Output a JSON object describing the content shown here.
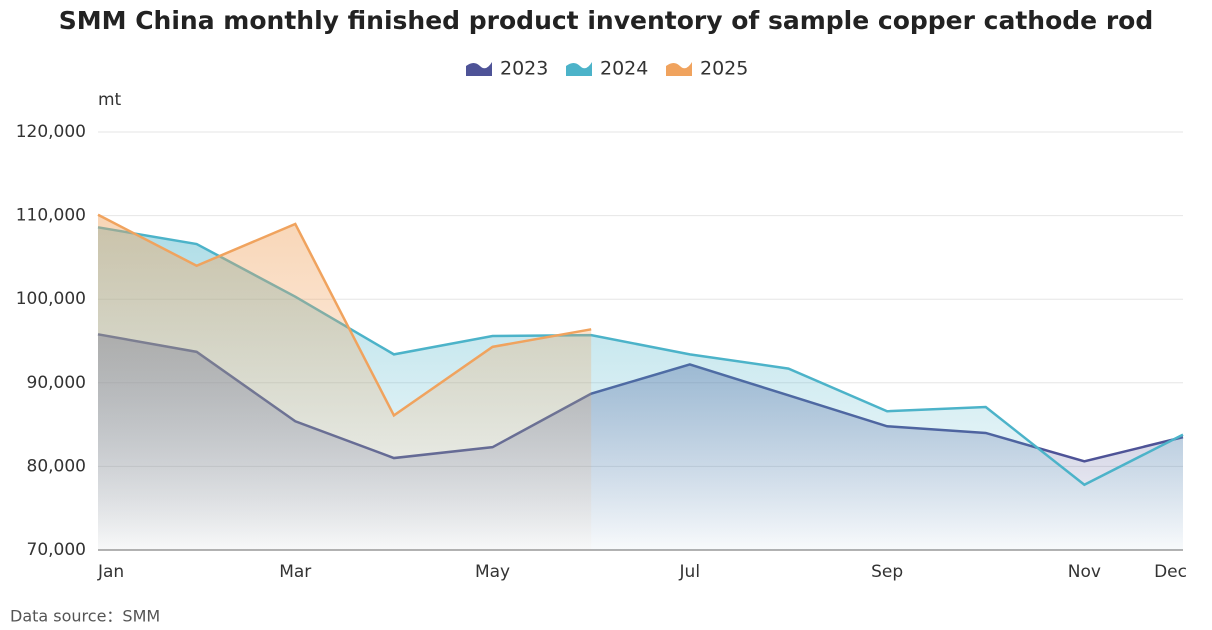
{
  "chart_data": {
    "type": "line",
    "title": "SMM China monthly finished product inventory of sample copper cathode rod",
    "y_unit": "mt",
    "source": "Data source：SMM",
    "categories": [
      "Jan",
      null,
      "Mar",
      null,
      "May",
      null,
      "Jul",
      null,
      "Sep",
      null,
      "Nov",
      "Dec"
    ],
    "series": [
      {
        "name": "2023",
        "color": "#4e5397",
        "values": [
          95800,
          93700,
          85400,
          81000,
          82300,
          88700,
          92200,
          88500,
          84800,
          84000,
          80600,
          83500
        ]
      },
      {
        "name": "2024",
        "color": "#4cb3c9",
        "values": [
          108600,
          106600,
          100300,
          93400,
          95600,
          95700,
          93400,
          91700,
          86600,
          87100,
          77800,
          83800
        ]
      },
      {
        "name": "2025",
        "color": "#f0a35e",
        "values": [
          110100,
          104000,
          109000,
          86100,
          94300,
          96400,
          null,
          null,
          null,
          null,
          null,
          null
        ]
      }
    ],
    "ylim": [
      70000,
      120000
    ],
    "yticks": [
      {
        "value": 70000,
        "label": "70,000"
      },
      {
        "value": 80000,
        "label": "80,000"
      },
      {
        "value": 90000,
        "label": "90,000"
      },
      {
        "value": 100000,
        "label": "100,000"
      },
      {
        "value": 110000,
        "label": "110,000"
      },
      {
        "value": 120000,
        "label": "120,000"
      }
    ],
    "grid": true,
    "legend": "top"
  }
}
